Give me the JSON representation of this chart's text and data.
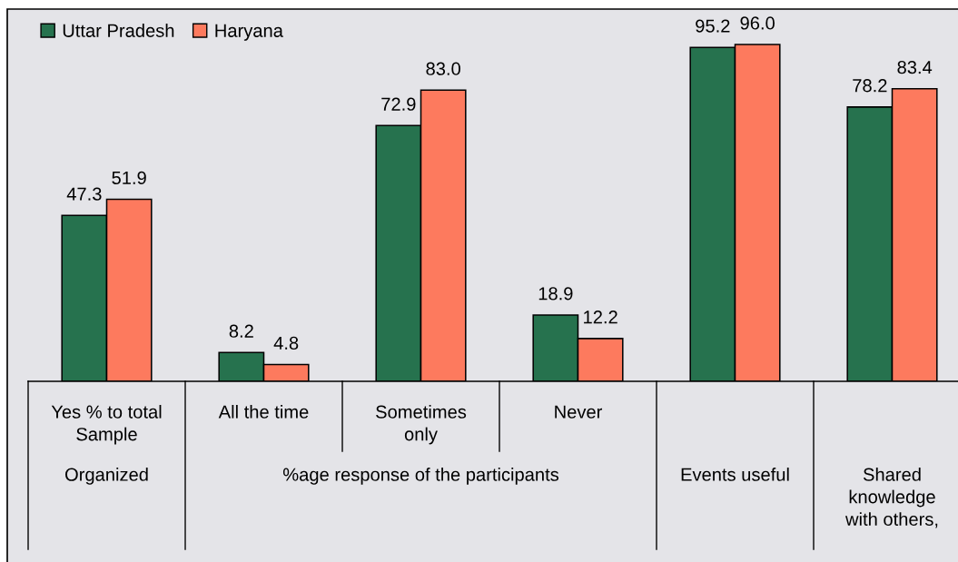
{
  "chart_data": {
    "type": "bar",
    "categories": [
      "Yes % to total Sample",
      "All the time",
      "Sometimes only",
      "Never",
      null,
      null
    ],
    "series": [
      {
        "name": "Uttar Pradesh",
        "color": "#26724e",
        "values": [
          47.3,
          8.2,
          72.9,
          18.9,
          95.2,
          78.2
        ],
        "value_labels": [
          "47.3",
          "8.2",
          "72.9",
          "18.9",
          "95.2",
          "78.2"
        ]
      },
      {
        "name": "Haryana",
        "color": "#fd7a5e",
        "values": [
          51.9,
          4.8,
          83.0,
          12.2,
          96.0,
          83.4
        ],
        "value_labels": [
          "51.9",
          "4.8",
          "83.0",
          "12.2",
          "96.0",
          "83.4"
        ]
      }
    ],
    "annotations": [
      "Organized",
      "%age response of the participants",
      "Events useful",
      "Shared knowledge with others,"
    ],
    "legend": "top left"
  }
}
